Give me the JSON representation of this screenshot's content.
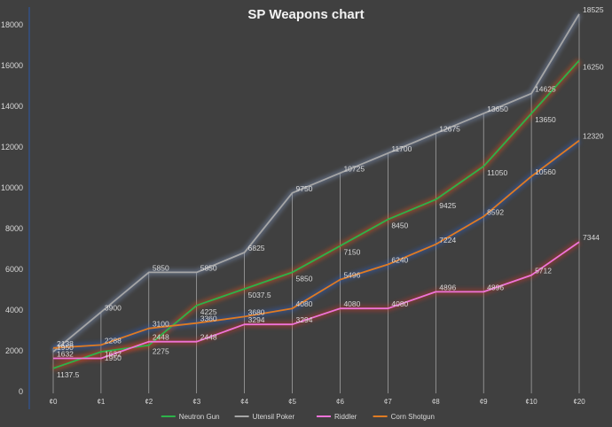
{
  "chart_data": {
    "type": "line",
    "title": "SP Weapons chart",
    "xlabel": "",
    "ylabel": "",
    "categories": [
      "¢0",
      "¢1",
      "¢2",
      "¢3",
      "¢4",
      "¢5",
      "¢6",
      "¢7",
      "¢8",
      "¢9",
      "¢10",
      "¢20"
    ],
    "ylim": [
      0,
      18000
    ],
    "yticks": [
      0,
      2000,
      4000,
      6000,
      8000,
      10000,
      12000,
      14000,
      16000,
      18000
    ],
    "grid": false,
    "drop_lines": true,
    "legend_position": "bottom",
    "series": [
      {
        "name": "Neutron Gun",
        "color": "#2cb34a",
        "values": [
          1137.5,
          1950,
          2275,
          4225,
          5037.5,
          5850,
          7150,
          8450,
          9425,
          11050,
          13650,
          16250
        ]
      },
      {
        "name": "Utensil Poker",
        "color": "#a6a6a6",
        "values": [
          1950,
          3900,
          5850,
          5850,
          6825,
          9750,
          10725,
          11700,
          12675,
          13650,
          14625,
          18525
        ]
      },
      {
        "name": "Riddler",
        "color": "#ef73d8",
        "values": [
          1632,
          1632,
          2448,
          2448,
          3294,
          3294,
          4080,
          4080,
          4896,
          4896,
          5712,
          7344
        ]
      },
      {
        "name": "Corn Shotgun",
        "color": "#e07b22",
        "values": [
          2138,
          2288,
          3100,
          3360,
          3680,
          4080,
          5496,
          6240,
          7224,
          8592,
          10560,
          12320
        ]
      }
    ]
  }
}
